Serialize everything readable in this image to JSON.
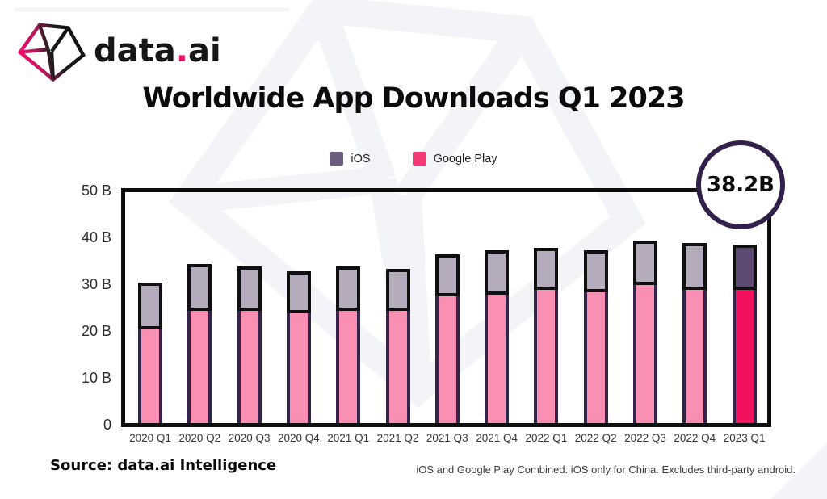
{
  "brand": {
    "part1": "data",
    "dot": ".",
    "part2": "ai"
  },
  "chart_data": {
    "type": "bar",
    "stacked": true,
    "title": "Worldwide App Downloads Q1 2023",
    "categories": [
      "2020 Q1",
      "2020 Q2",
      "2020 Q3",
      "2020 Q4",
      "2021 Q1",
      "2021 Q2",
      "2021 Q3",
      "2021 Q4",
      "2022 Q1",
      "2022 Q2",
      "2022 Q3",
      "2022 Q4",
      "2023 Q1"
    ],
    "series": [
      {
        "name": "iOS",
        "values": [
          9.5,
          9.5,
          9,
          8.5,
          9,
          8.5,
          8.5,
          9,
          8.5,
          8.5,
          9,
          9.5,
          9.2
        ]
      },
      {
        "name": "Google Play",
        "values": [
          20.5,
          24.5,
          24.5,
          24,
          24.5,
          24.5,
          27.5,
          28,
          29,
          28.5,
          30,
          29,
          29
        ]
      }
    ],
    "totals": [
      30,
      34,
      33.5,
      32.5,
      33.5,
      33,
      36,
      37,
      37.5,
      37,
      39,
      38.5,
      38.2
    ],
    "xlabel": "",
    "ylabel": "",
    "ylim": [
      0,
      50
    ],
    "yticks": [
      "50 B",
      "40 B",
      "30 B",
      "20 B",
      "10 B",
      "0"
    ],
    "grid": false,
    "legend_position": "top-center",
    "highlight_index": 12,
    "annotation": "38.2B",
    "colors": {
      "google_play_normal": "#f98fb3",
      "google_play_highlight": "#f2115f",
      "ios_normal": "#b4abbd",
      "ios_highlight": "#5e4b73",
      "bar_side_edge": "#342449",
      "bar_outline": "#101010",
      "legend_ios": "#6a5d7e",
      "legend_google_play": "#f43a75",
      "badge_border": "#31204a",
      "logo_pink": "#ed1067"
    }
  },
  "footer": {
    "source": "Source: data.ai Intelligence",
    "note": "iOS and Google Play Combined. iOS only for China. Excludes third-party android."
  }
}
